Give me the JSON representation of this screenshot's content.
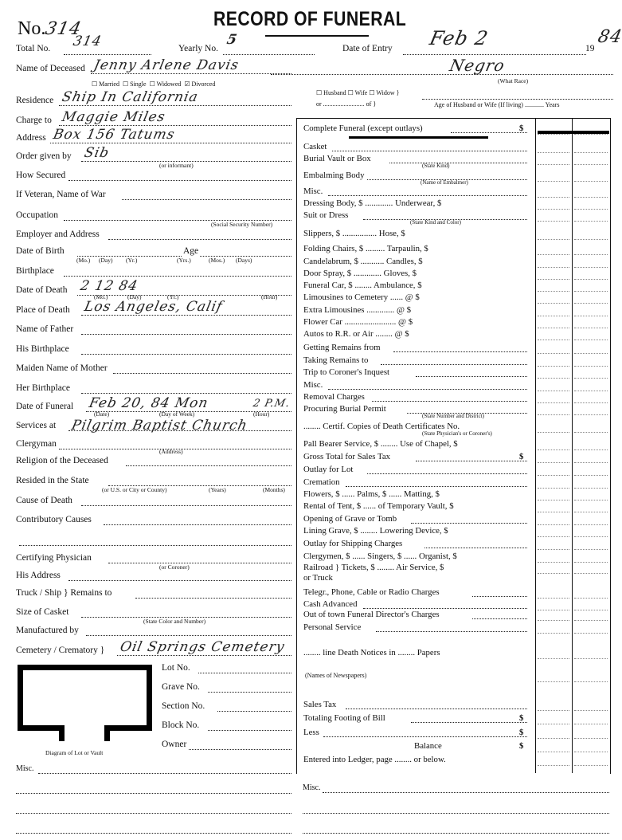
{
  "header": {
    "no_label": "No.",
    "no_value": "314",
    "title": "RECORD OF FUNERAL"
  },
  "top": {
    "total_no_label": "Total No.",
    "total_no_value": "314",
    "yearly_no_label": "Yearly No.",
    "yearly_no_value": "5",
    "date_entry_label": "Date of Entry",
    "date_entry_value": "Feb 2",
    "year_prefix": "19",
    "year_value": "84",
    "race_value": "Negro",
    "race_caption": "(What Race)",
    "marital_options": [
      "Married",
      "Single",
      "Widowed",
      "Divorced"
    ],
    "marital_selected": "Divorced",
    "spouse_options": [
      "Husband",
      "Wife",
      "Widow"
    ],
    "spouse_or": "or",
    "spouse_of": "of",
    "spouse_age_label": "Age of Husband or Wife (If living)",
    "years_label": "Years"
  },
  "left": [
    {
      "label": "Name of Deceased",
      "value": "Jenny Arlene Davis"
    },
    {
      "label": "Residence",
      "value": "Ship In California"
    },
    {
      "label": "Charge to",
      "value": "Maggie Miles"
    },
    {
      "label": "Address",
      "value": "Box 156 Tatums"
    },
    {
      "label": "Order given by",
      "value": "Sib",
      "caption": "(or informant)"
    },
    {
      "label": "How Secured",
      "value": ""
    },
    {
      "label": "If Veteran, Name of War",
      "value": ""
    },
    {
      "label": "Occupation",
      "value": "",
      "caption": "(Social Security Number)"
    },
    {
      "label": "Employer and Address",
      "value": ""
    },
    {
      "label": "Date of Birth",
      "value": "",
      "extra": "Age",
      "captions": [
        "(Mo.)",
        "(Day)",
        "(Yr.)",
        "(Yrs.)",
        "(Mos.)",
        "(Days)"
      ]
    },
    {
      "label": "Birthplace",
      "value": ""
    },
    {
      "label": "Date of Death",
      "value": "2     12     84"
    },
    {
      "label": "Place of Death",
      "value": "Los Angeles, Calif",
      "captions": [
        "(Mo.)",
        "(Day)",
        "(Yr.)",
        "(Hour)"
      ]
    },
    {
      "label": "Name of Father",
      "value": ""
    },
    {
      "label": "His Birthplace",
      "value": ""
    },
    {
      "label": "Maiden Name of Mother",
      "value": ""
    },
    {
      "label": "Her Birthplace",
      "value": ""
    },
    {
      "label": "Date of Funeral",
      "value": "Feb 20, 84    Mon",
      "hour": "2 P.M.",
      "captions": [
        "(Date)",
        "(Day of Week)",
        "(Hour)"
      ]
    },
    {
      "label": "Services at",
      "value": "Pilgrim Baptist Church"
    },
    {
      "label": "Clergyman",
      "value": "",
      "caption": "(Address)"
    },
    {
      "label": "Religion of the Deceased",
      "value": ""
    },
    {
      "label": "Resided in the State",
      "value": "",
      "captions": [
        "(or U.S. or City or County)",
        "(Years)",
        "(Months)"
      ]
    },
    {
      "label": "Cause of Death",
      "value": ""
    },
    {
      "label": "Contributory Causes",
      "value": ""
    },
    {
      "label": "",
      "value": ""
    },
    {
      "label": "Certifying Physician",
      "value": "",
      "caption": "(or Coroner)"
    },
    {
      "label": "His Address",
      "value": ""
    },
    {
      "label": "Truck / Ship }  Remains to",
      "value": ""
    },
    {
      "label": "Size of Casket",
      "value": "",
      "caption": "(State Color and Number)"
    },
    {
      "label": "Manufactured by",
      "value": ""
    },
    {
      "label": "Cemetery / Crematory }",
      "value": "Oil Springs Cemetery"
    }
  ],
  "lot": {
    "fields": [
      "Lot No.",
      "Grave No.",
      "Section No.",
      "Block No.",
      "Owner"
    ],
    "diagram_caption": "Diagram of Lot or Vault"
  },
  "misc_left": "Misc.",
  "misc_right": "Misc.",
  "right": [
    {
      "label": "Complete Funeral (except outlays)",
      "dollar": "$"
    },
    {
      "label": "Casket"
    },
    {
      "label": "Burial Vault or Box",
      "caption": "(State Kind)"
    },
    {
      "label": "Embalming Body",
      "caption": "(Name of Embalmer)"
    },
    {
      "label": "Misc."
    },
    {
      "label": "Dressing Body, $ ............. Underwear, $"
    },
    {
      "label": "Suit or Dress",
      "caption": "(State Kind and Color)"
    },
    {
      "label": "Slippers, $ ................ Hose, $"
    },
    {
      "label": "Folding Chairs, $ ......... Tarpaulin, $"
    },
    {
      "label": "Candelabrum, $ ........... Candles, $"
    },
    {
      "label": "Door Spray, $ ............. Gloves, $"
    },
    {
      "label": "Funeral Car, $ ........ Ambulance, $"
    },
    {
      "label": "Limousines to Cemetery ...... @ $"
    },
    {
      "label": "Extra Limousines ............. @ $"
    },
    {
      "label": "Flower Car ........................ @ $"
    },
    {
      "label": "Autos to R.R. or Air ........ @ $"
    },
    {
      "label": "Getting Remains from"
    },
    {
      "label": "Taking Remains to"
    },
    {
      "label": "Trip to Coroner's Inquest"
    },
    {
      "label": "Misc."
    },
    {
      "label": "Removal Charges"
    },
    {
      "label": "Procuring Burial Permit",
      "caption": "(State Number and District)"
    },
    {
      "label": "........ Certif. Copies of Death Certificates No.",
      "caption": "(State Physician's or Coroner's)"
    },
    {
      "label": "Pall Bearer Service, $ ........ Use of Chapel, $"
    },
    {
      "label": "Gross Total for Sales Tax",
      "dollar": "$"
    },
    {
      "label": "Outlay for Lot"
    },
    {
      "label": "Cremation"
    },
    {
      "label": "Flowers, $ ...... Palms, $ ...... Matting, $"
    },
    {
      "label": "Rental of Tent, $ ...... of Temporary Vault, $"
    },
    {
      "label": "Opening of Grave or Tomb"
    },
    {
      "label": "Lining Grave, $ ........ Lowering Device, $"
    },
    {
      "label": "Outlay for Shipping Charges"
    },
    {
      "label": "Clergymen, $ ...... Singers, $ ...... Organist, $"
    },
    {
      "label": "Railroad } Tickets, $ ........ Air Service, $",
      "prefix": "or Truck"
    },
    {
      "label": "Telegr., Phone, Cable or Radio Charges"
    },
    {
      "label": "Cash Advanced"
    },
    {
      "label": "Out of town Funeral Director's Charges"
    },
    {
      "label": "Personal Service"
    },
    {
      "label": "........ line Death Notices in ........ Papers"
    },
    {
      "label": "(Names of Newspapers)"
    },
    {
      "label": "Sales Tax"
    },
    {
      "label": "Totaling Footing of Bill",
      "dollar": "$"
    },
    {
      "label": "Less",
      "dollar": "$"
    },
    {
      "label": "Balance",
      "dollar": "$"
    },
    {
      "label": "Entered into Ledger, page ........ or below."
    }
  ]
}
